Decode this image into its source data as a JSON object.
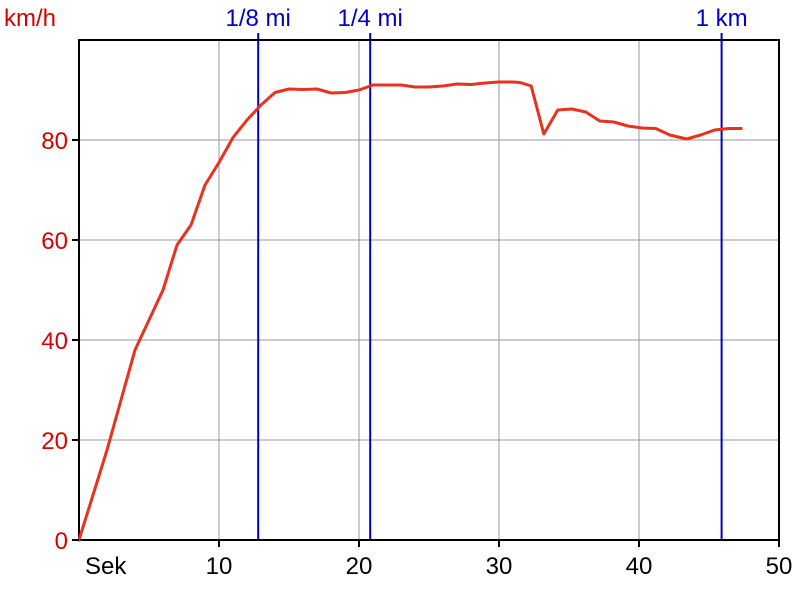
{
  "chart_data": {
    "type": "line",
    "ylabel": "km/h",
    "xlabel": "Sek",
    "xlim": [
      0,
      50
    ],
    "ylim": [
      0,
      100
    ],
    "x_ticks": [
      10,
      20,
      30,
      40,
      50
    ],
    "y_ticks": [
      0,
      20,
      40,
      60,
      80
    ],
    "x_tick_labels": [
      "10",
      "20",
      "30",
      "40",
      "50"
    ],
    "y_tick_labels": [
      "0",
      "20",
      "40",
      "60",
      "80"
    ],
    "grid": true,
    "colors": {
      "speed_line": "#e8321e",
      "y_axis_text": "#d80000",
      "marker_line": "#0000cc",
      "grid": "#999999",
      "axis": "#000000"
    },
    "markers": [
      {
        "label": "1/8 mi",
        "x": 12.8
      },
      {
        "label": "1/4 mi",
        "x": 20.8
      },
      {
        "label": "1 km",
        "x": 45.9
      }
    ],
    "series": [
      {
        "x": [
          0,
          1,
          2,
          3,
          4,
          5,
          6,
          7,
          8,
          9,
          10,
          11,
          12,
          13,
          14,
          15,
          16,
          17,
          18,
          19,
          20,
          21,
          22,
          23,
          24,
          25,
          26,
          27,
          28,
          29,
          30,
          31,
          31.5,
          32.3,
          33.2,
          34.2,
          35.2,
          36.2,
          37.2,
          38.2,
          39.2,
          40.2,
          41.2,
          42.2,
          43.4,
          44.4,
          45.4,
          46.4,
          47.3
        ],
        "values": [
          0,
          9,
          18,
          28,
          38,
          44,
          50,
          59,
          63,
          71,
          75.5,
          80.5,
          84,
          87,
          89.5,
          90.2,
          90.1,
          90.2,
          89.4,
          89.5,
          90,
          91,
          91,
          91,
          90.6,
          90.6,
          90.8,
          91.2,
          91.1,
          91.4,
          91.6,
          91.6,
          91.5,
          90.8,
          81.2,
          86,
          86.2,
          85.6,
          83.8,
          83.6,
          82.8,
          82.4,
          82.3,
          81,
          80.2,
          81,
          82,
          82.3,
          82.3
        ]
      }
    ]
  }
}
